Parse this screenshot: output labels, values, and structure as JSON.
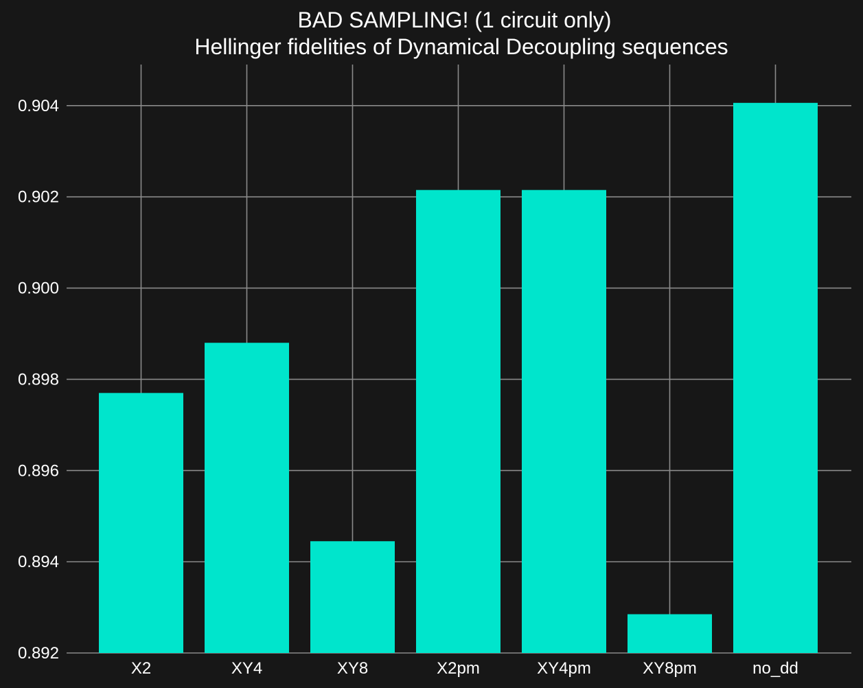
{
  "chart_data": {
    "type": "bar",
    "title": "BAD SAMPLING! (1 circuit only)",
    "subtitle": "Hellinger fidelities of Dynamical Decoupling sequences",
    "xlabel": "",
    "ylabel": "",
    "categories": [
      "X2",
      "XY4",
      "XY8",
      "X2pm",
      "XY4pm",
      "XY8pm",
      "no_dd"
    ],
    "values": [
      0.8977,
      0.8988,
      0.89445,
      0.90215,
      0.90215,
      0.89285,
      0.90406
    ],
    "ylim": [
      0.892,
      0.9049
    ],
    "yticks": [
      "0.892",
      "0.894",
      "0.896",
      "0.898",
      "0.900",
      "0.902",
      "0.904"
    ],
    "grid": true,
    "colors": {
      "bar": "#00e5cc",
      "background": "#171717",
      "grid": "#8a8a8a",
      "text": "#ffffff"
    }
  }
}
